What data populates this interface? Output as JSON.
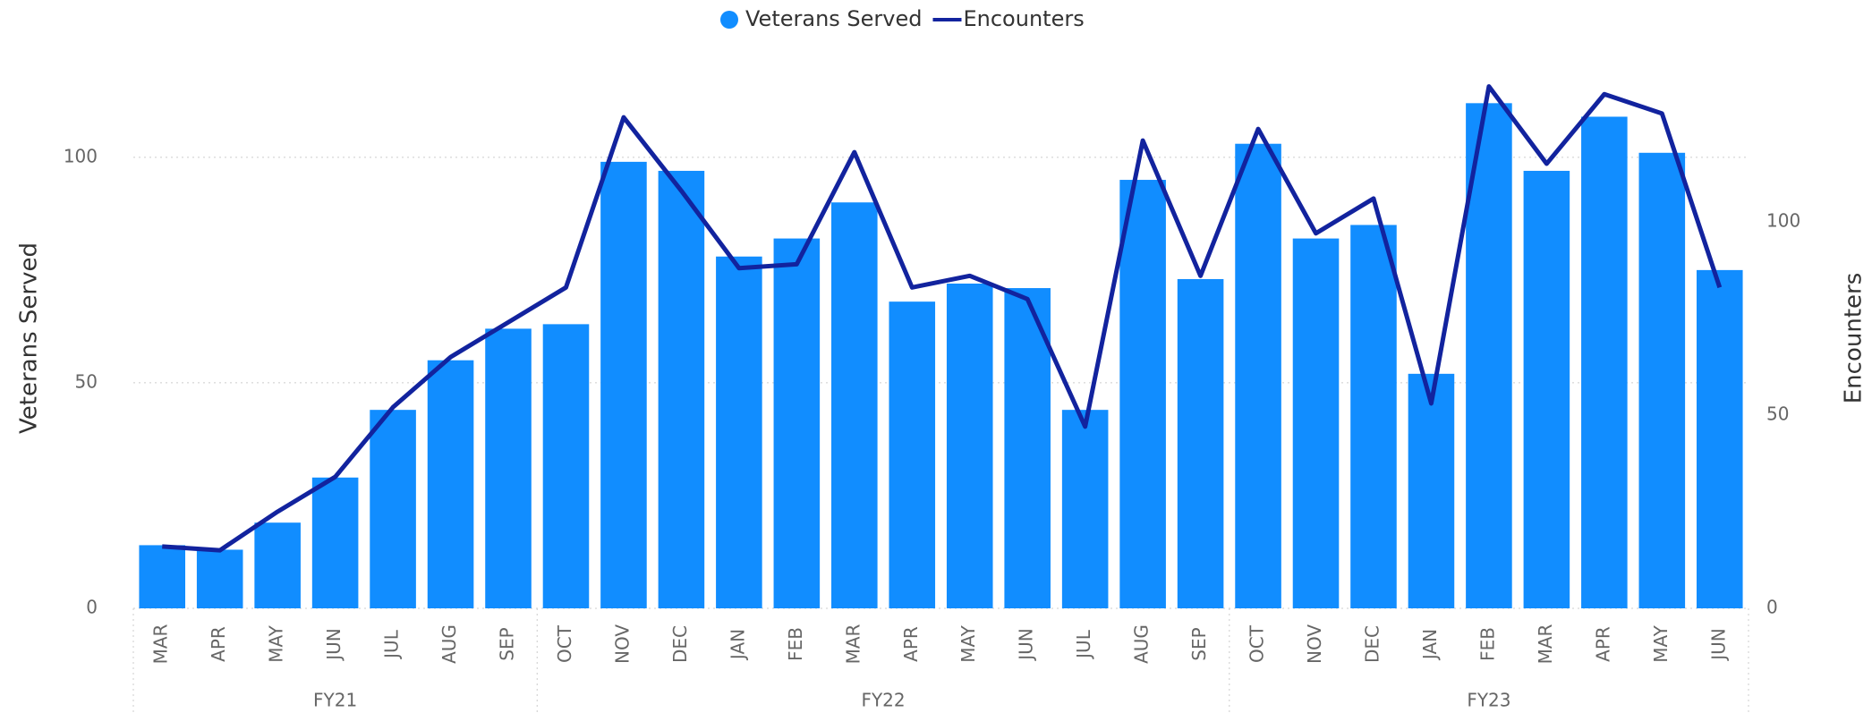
{
  "chart_data": {
    "type": "bar_line",
    "categories": [
      "MAR",
      "APR",
      "MAY",
      "JUN",
      "JUL",
      "AUG",
      "SEP",
      "OCT",
      "NOV",
      "DEC",
      "JAN",
      "FEB",
      "MAR",
      "APR",
      "MAY",
      "JUN",
      "JUL",
      "AUG",
      "SEP",
      "OCT",
      "NOV",
      "DEC",
      "JAN",
      "FEB",
      "MAR",
      "APR",
      "MAY",
      "JUN"
    ],
    "groups": [
      {
        "label": "FY21",
        "span": 7
      },
      {
        "label": "FY22",
        "span": 12
      },
      {
        "label": "FY23",
        "span": 9
      }
    ],
    "series": [
      {
        "name": "Veterans Served",
        "type": "bar",
        "color": "#118dff",
        "axis": "y",
        "values": [
          14,
          13,
          19,
          29,
          44,
          55,
          62,
          63,
          99,
          97,
          78,
          82,
          90,
          68,
          72,
          71,
          44,
          95,
          73,
          103,
          82,
          85,
          52,
          112,
          97,
          109,
          101,
          75
        ]
      },
      {
        "name": "Encounters",
        "type": "line",
        "color": "#12239e",
        "axis": "y2",
        "values": [
          16,
          15,
          25,
          34,
          52,
          65,
          74,
          83,
          127,
          108,
          88,
          89,
          118,
          83,
          86,
          80,
          47,
          121,
          86,
          124,
          97,
          106,
          53,
          135,
          115,
          133,
          128,
          83
        ]
      }
    ],
    "ylabel": "Veterans Served",
    "y2label": "Encounters",
    "ylim": [
      0,
      120
    ],
    "yticks": [
      0,
      50,
      100
    ],
    "y2lim": [
      0,
      140
    ],
    "y2ticks": [
      0,
      50,
      100
    ],
    "grid": true,
    "legend": "top"
  }
}
